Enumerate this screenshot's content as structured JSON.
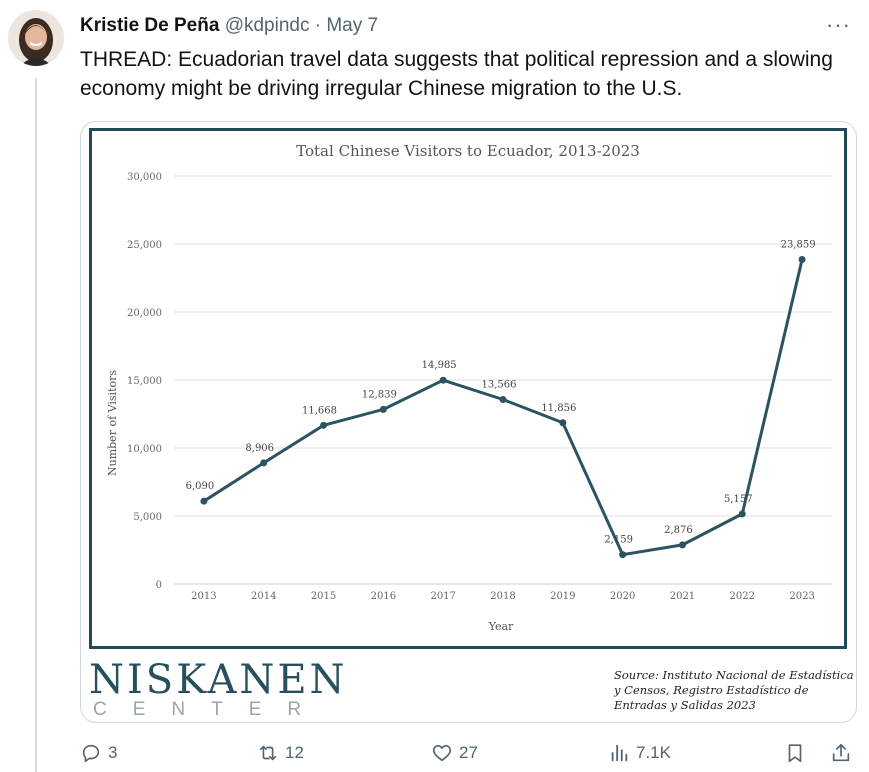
{
  "tweet": {
    "author_name": "Kristie De Peña",
    "handle": "@kdpindc",
    "separator": " · ",
    "date": "May 7",
    "more": "···",
    "text": "THREAD: Ecuadorian travel data suggests that political repression and a slowing economy might be driving irregular Chinese migration to the U.S."
  },
  "media": {
    "logo_main": "NISKANEN",
    "logo_sub": "CENTER",
    "source_text": "Source: Instituto Nacional de Estadística y Censos, Registro Estadístico de Entradas y Salidas 2023"
  },
  "chart_data": {
    "type": "line",
    "title": "Total Chinese Visitors to Ecuador, 2013-2023",
    "xlabel": "Year",
    "ylabel": "Number of Visitors",
    "x": [
      "2013",
      "2014",
      "2015",
      "2016",
      "2017",
      "2018",
      "2019",
      "2020",
      "2021",
      "2022",
      "2023"
    ],
    "values": [
      6090,
      8906,
      11668,
      12839,
      14985,
      13566,
      11856,
      2159,
      2876,
      5157,
      23859
    ],
    "data_labels": [
      "6,090",
      "8,906",
      "11,668",
      "12,839",
      "14,985",
      "13,566",
      "11,856",
      "2,159",
      "2,876",
      "5,157",
      "23,859"
    ],
    "yticks": [
      "0",
      "5,000",
      "10,000",
      "15,000",
      "20,000",
      "25,000",
      "30,000"
    ],
    "ylim": [
      0,
      30000
    ],
    "grid": true,
    "line_color": "#2c5361"
  },
  "actions": {
    "reply_count": "3",
    "repost_count": "12",
    "like_count": "27",
    "views_count": "7.1K"
  }
}
